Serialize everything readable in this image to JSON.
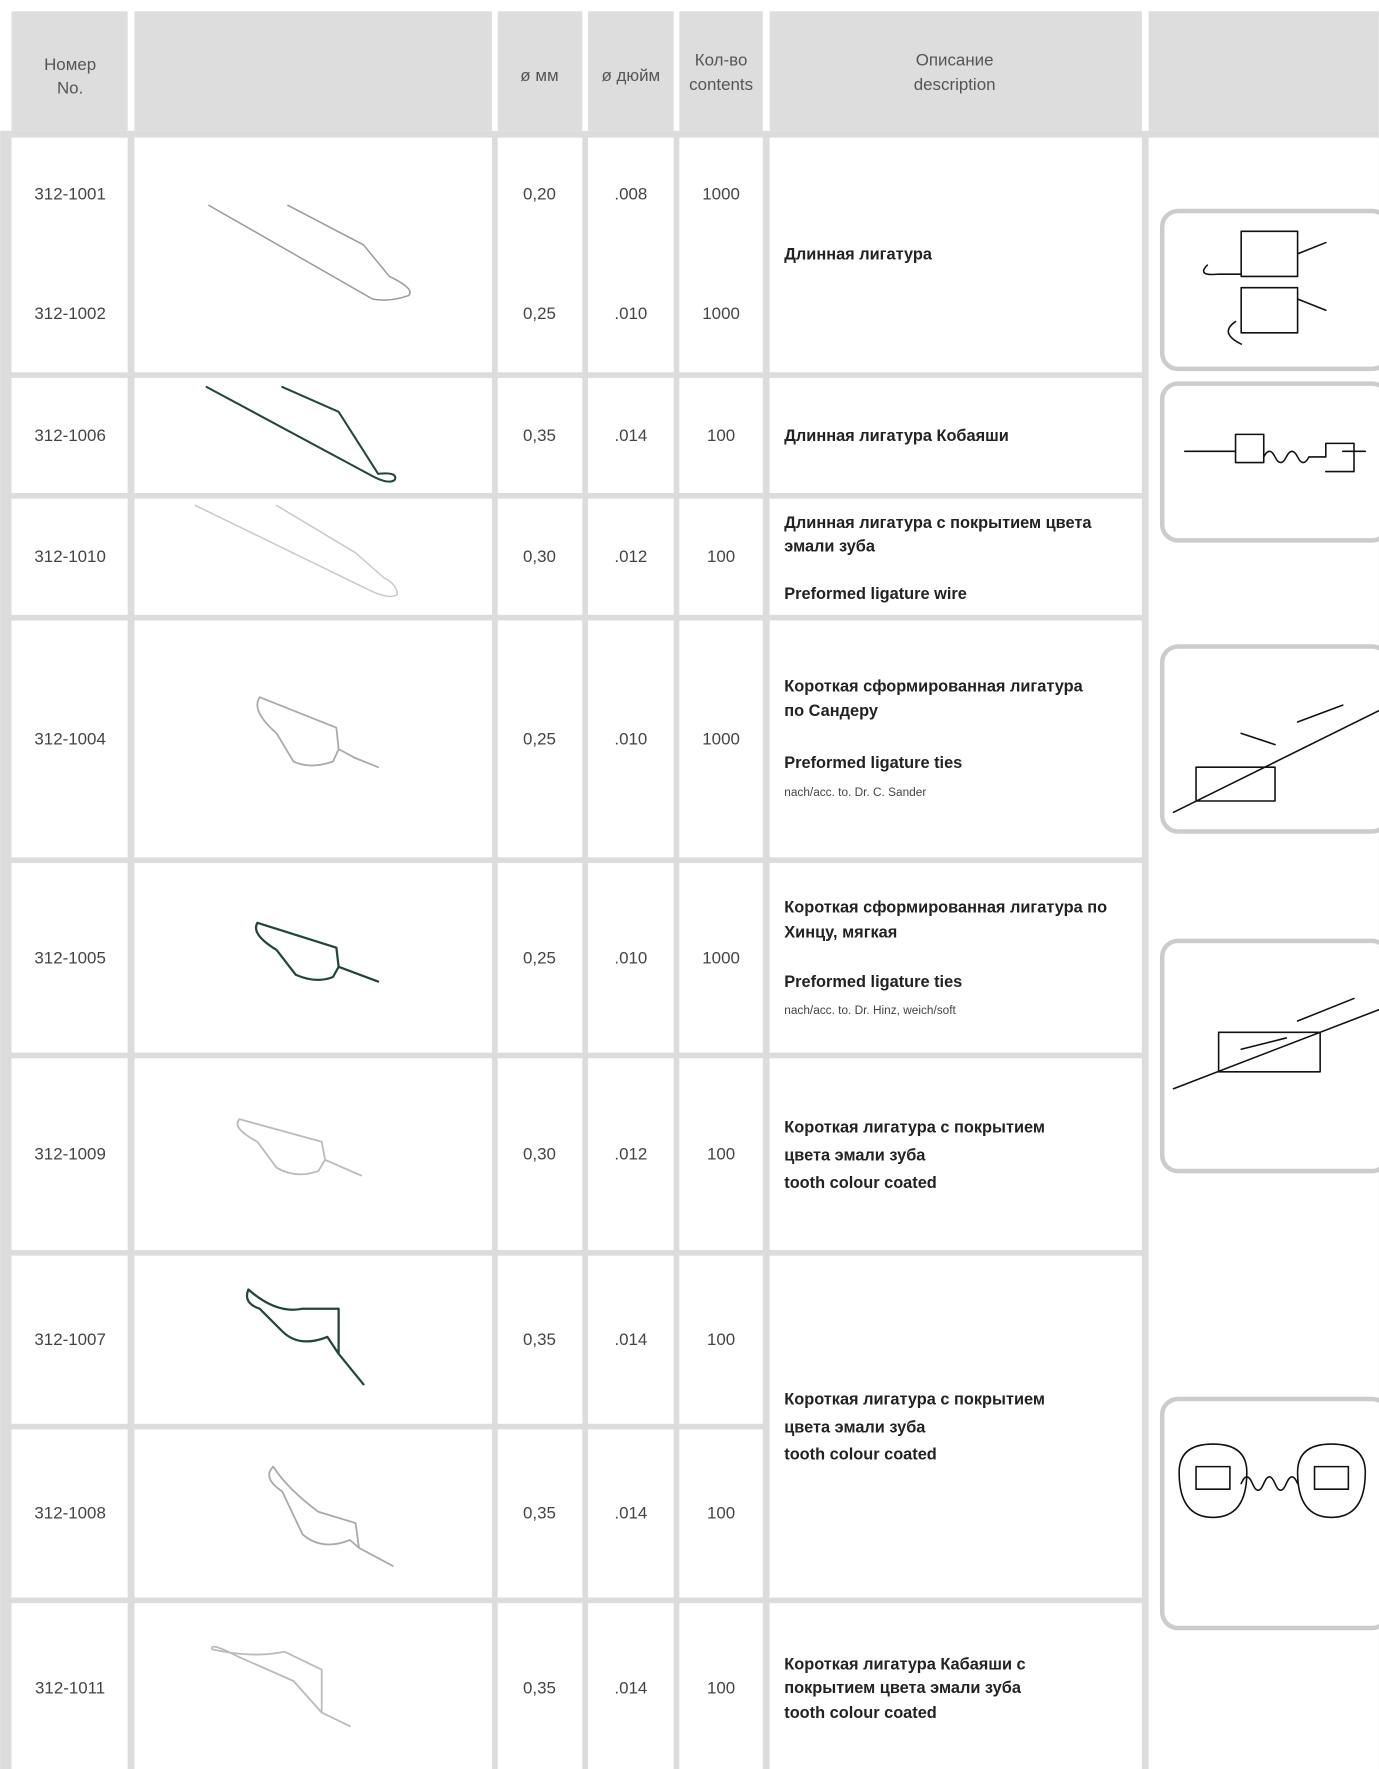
{
  "header": {
    "number": [
      "Номер",
      "No."
    ],
    "mm": "ø мм",
    "inch": "ø дюйм",
    "contents": [
      "Кол-во",
      "contents"
    ],
    "description": [
      "Описание",
      "description"
    ]
  },
  "table": {
    "rows": [
      [
        "312-1001",
        "0,20",
        ".008",
        "1000"
      ],
      [
        "312-1002",
        "0,25",
        ".010",
        "1000"
      ],
      [
        "312-1006",
        "0,35",
        ".014",
        "100"
      ],
      [
        "312-1010",
        "0,30",
        ".012",
        "100"
      ],
      [
        "312-1004",
        "0,25",
        ".010",
        "1000"
      ],
      [
        "312-1005",
        "0,25",
        ".010",
        "1000"
      ],
      [
        "312-1009",
        "0,30",
        ".012",
        "100"
      ],
      [
        "312-1007",
        "0,35",
        ".014",
        "100"
      ],
      [
        "312-1008",
        "0,35",
        ".014",
        "100"
      ],
      [
        "312-1011",
        "0,35",
        ".014",
        "100"
      ]
    ],
    "descriptions": [
      {
        "ru": [
          "Длинная лигатура"
        ]
      },
      {
        "ru": [
          "Длинная лигатура Кобаяши"
        ]
      },
      {
        "ru": [
          "Длинная лигатура с покрытием цвета",
          "эмали зуба"
        ],
        "en": "Preformed ligature wire"
      },
      {
        "ru": [
          "Короткая  сформированная лигатура",
          "по Сандеру"
        ],
        "en": "Preformed ligature ties",
        "note": "nach/acc. to. Dr. C. Sander"
      },
      {
        "ru": [
          "Короткая сформированная лигатура по",
          "Хинцу, мягкая"
        ],
        "en": "Preformed ligature ties",
        "note": "nach/acc. to. Dr. Hinz, weich/soft"
      },
      {
        "ru": [
          "Короткая лигатура  с покрытием",
          "цвета эмали зуба"
        ],
        "en": "tooth colour coated"
      },
      {
        "ru": [
          "Короткая лигатура  с покрытием",
          "цвета эмали зуба"
        ],
        "en": "tooth colour coated"
      },
      {
        "ru": [
          "Короткая лигатура Кабаяши с",
          "покрытием цвета эмали зуба"
        ],
        "en": "tooth colour coated"
      }
    ]
  }
}
